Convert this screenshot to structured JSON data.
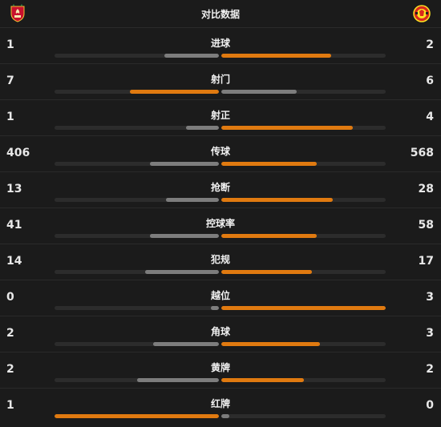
{
  "header": {
    "title": "对比数据",
    "home_crest_icon": "liverpool-crest-icon",
    "away_crest_icon": "manchester-united-crest-icon"
  },
  "colors": {
    "winner": "#e07a10",
    "loser": "#7d7d7d",
    "track": "#2c2c2c"
  },
  "stats": [
    {
      "label": "进球",
      "home": "1",
      "away": "2",
      "home_share": 0.33,
      "away_share": 0.67
    },
    {
      "label": "射门",
      "home": "7",
      "away": "6",
      "home_share": 0.54,
      "away_share": 0.46
    },
    {
      "label": "射正",
      "home": "1",
      "away": "4",
      "home_share": 0.2,
      "away_share": 0.8
    },
    {
      "label": "传球",
      "home": "406",
      "away": "568",
      "home_share": 0.42,
      "away_share": 0.58
    },
    {
      "label": "抢断",
      "home": "13",
      "away": "28",
      "home_share": 0.32,
      "away_share": 0.68
    },
    {
      "label": "控球率",
      "home": "41",
      "away": "58",
      "home_share": 0.42,
      "away_share": 0.58
    },
    {
      "label": "犯规",
      "home": "14",
      "away": "17",
      "home_share": 0.45,
      "away_share": 0.55
    },
    {
      "label": "越位",
      "home": "0",
      "away": "3",
      "home_share": 0.05,
      "away_share": 1.0
    },
    {
      "label": "角球",
      "home": "2",
      "away": "3",
      "home_share": 0.4,
      "away_share": 0.6
    },
    {
      "label": "黄牌",
      "home": "2",
      "away": "2",
      "home_share": 0.5,
      "away_share": 0.5
    },
    {
      "label": "红牌",
      "home": "1",
      "away": "0",
      "home_share": 1.0,
      "away_share": 0.05
    }
  ]
}
